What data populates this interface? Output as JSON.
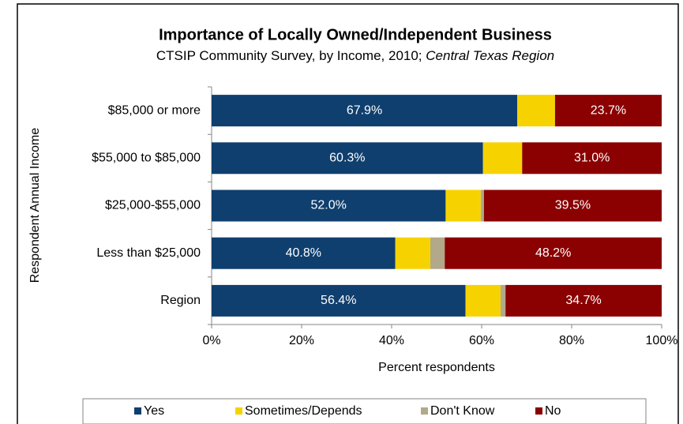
{
  "chart_data": {
    "type": "stacked-barh",
    "title": "Importance of Locally Owned/Independent Business",
    "subtitle": "CTSIP Community Survey, by Income, 2010;",
    "subtitle_region": "Central Texas Region",
    "xlabel": "Percent respondents",
    "ylabel": "Respondent Annual Income",
    "categories": [
      "$85,000 or more",
      "$55,000 to $85,000",
      "$25,000-$55,000",
      "Less than $25,000",
      "Region"
    ],
    "series": [
      {
        "name": "Yes",
        "color": "#0f3f6e",
        "values": [
          67.9,
          60.3,
          52.0,
          40.8,
          56.4
        ],
        "value_labels": [
          "67.9%",
          "60.3%",
          "52.0%",
          "40.8%",
          "56.4%"
        ]
      },
      {
        "name": "Sometimes/Depends",
        "color": "#f6d300",
        "values": [
          8.4,
          8.7,
          7.8,
          7.8,
          7.8
        ]
      },
      {
        "name": "Don't Know",
        "color": "#b2a88a",
        "values": [
          0,
          0,
          0.7,
          3.2,
          1.1
        ]
      },
      {
        "name": "No",
        "color": "#8b0000",
        "values": [
          23.7,
          31.0,
          39.5,
          48.2,
          34.7
        ],
        "value_labels": [
          "23.7%",
          "31.0%",
          "39.5%",
          "48.2%",
          "34.7%"
        ]
      }
    ],
    "xlim": [
      0,
      100
    ],
    "xticks": [
      {
        "value": 0,
        "label": "0%"
      },
      {
        "value": 20,
        "label": "20%"
      },
      {
        "value": 40,
        "label": "40%"
      },
      {
        "value": 60,
        "label": "60%"
      },
      {
        "value": 80,
        "label": "80%"
      },
      {
        "value": 100,
        "label": "100%"
      }
    ],
    "legend": "bottom"
  }
}
